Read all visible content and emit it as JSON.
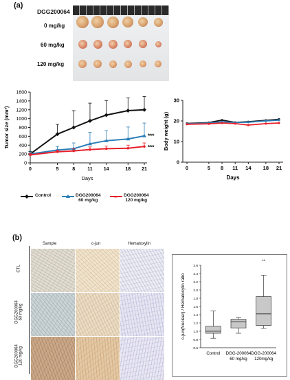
{
  "panel_a": {
    "label": "(a)",
    "photo": {
      "compound_label": "DGG200064",
      "rows": [
        {
          "label": "0 mg/kg"
        },
        {
          "label": "60 mg/kg"
        },
        {
          "label": "120 mg/kg"
        }
      ]
    }
  },
  "panel_b": {
    "label": "(b)",
    "ihc": {
      "columns": [
        "Sample",
        "c-jun",
        "Hematoxylin"
      ],
      "rows": [
        "CTL",
        "DGG200064\n60 mg/kg",
        "DGG200064\n120 mg/kg"
      ]
    }
  },
  "legend": {
    "items": [
      {
        "label": "Control",
        "color": "#111111"
      },
      {
        "label": "DGG200064\n60 mg/kg",
        "color": "#2c7fb8"
      },
      {
        "label": "DGG200064\n120 mg/kg",
        "color": "#e8202a"
      }
    ]
  },
  "chart_data": [
    {
      "type": "line",
      "xlabel": "Days",
      "ylabel": "Tumor size (mm³)",
      "x": [
        0,
        5,
        8,
        11,
        14,
        18,
        21
      ],
      "ylim": [
        0,
        1600
      ],
      "yticks": [
        0,
        200,
        400,
        600,
        800,
        1000,
        1200,
        1400,
        1600
      ],
      "series": [
        {
          "name": "Control",
          "color": "#111111",
          "marker": "diamond",
          "values": [
            200,
            650,
            800,
            950,
            1080,
            1180,
            1200
          ],
          "errors": [
            60,
            220,
            380,
            400,
            330,
            290,
            300
          ]
        },
        {
          "name": "DGG200064 60 mg/kg",
          "color": "#2c7fb8",
          "marker": "triangle",
          "values": [
            200,
            290,
            320,
            430,
            500,
            540,
            610
          ],
          "errors": [
            50,
            80,
            130,
            260,
            230,
            270,
            290
          ]
        },
        {
          "name": "DGG200064 120 mg/kg",
          "color": "#e8202a",
          "marker": "x",
          "values": [
            180,
            250,
            270,
            300,
            320,
            330,
            370
          ],
          "errors": [
            30,
            40,
            50,
            60,
            60,
            70,
            80
          ]
        }
      ],
      "annotations": [
        "***",
        "***"
      ],
      "grid": false
    },
    {
      "type": "line",
      "xlabel": "Days",
      "ylabel": "Body weight (g)",
      "x": [
        0,
        5,
        8,
        11,
        14,
        18,
        21
      ],
      "ylim": [
        0,
        30
      ],
      "yticks": [
        0,
        10,
        20,
        30
      ],
      "series": [
        {
          "name": "Control",
          "color": "#111111",
          "values": [
            18.8,
            19.2,
            20.4,
            19.3,
            19.6,
            20.3,
            20.8
          ]
        },
        {
          "name": "DGG200064 60 mg/kg",
          "color": "#2c7fb8",
          "values": [
            18.6,
            19.0,
            19.6,
            19.2,
            19.4,
            20.0,
            20.4
          ]
        },
        {
          "name": "DGG200064 120 mg/kg",
          "color": "#e8202a",
          "values": [
            18.4,
            18.6,
            19.0,
            18.7,
            18.0,
            18.7,
            19.0
          ]
        }
      ],
      "grid": false
    },
    {
      "type": "box",
      "ylabel": "c-jun(Nuclear) / Hematoxylin ratio",
      "categories": [
        "Control",
        "DGG-200064\n60 mg/kg",
        "DGG-200064\n120mg/kg"
      ],
      "ylim": [
        0.6,
        2.6
      ],
      "yticks": [
        0.6,
        0.8,
        1.0,
        1.2,
        1.4,
        1.6,
        1.8,
        2.0,
        2.2,
        2.4,
        2.6
      ],
      "boxes": [
        {
          "min": 0.83,
          "q1": 0.95,
          "median": 1.0,
          "q3": 1.12,
          "max": 1.49
        },
        {
          "min": 0.95,
          "q1": 1.08,
          "median": 1.23,
          "q3": 1.29,
          "max": 1.33
        },
        {
          "min": 1.07,
          "q1": 1.14,
          "median": 1.42,
          "q3": 1.84,
          "max": 2.36
        }
      ],
      "annotations": [
        "**"
      ]
    }
  ]
}
